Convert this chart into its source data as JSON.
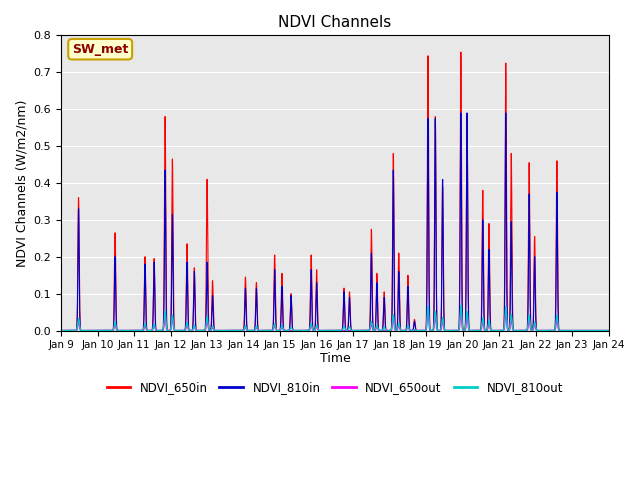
{
  "title": "NDVI Channels",
  "ylabel": "NDVI Channels (W/m2/nm)",
  "xlabel": "Time",
  "ylim": [
    0.0,
    0.8
  ],
  "yticks": [
    0.0,
    0.1,
    0.2,
    0.3,
    0.4,
    0.5,
    0.6,
    0.7,
    0.8
  ],
  "annotation_text": "SW_met",
  "annotation_bg": "#ffffcc",
  "annotation_border": "#c8a000",
  "annotation_fg": "#8b0000",
  "line_colors": {
    "NDVI_650in": "#ff0000",
    "NDVI_810in": "#0000cc",
    "NDVI_650out": "#ff00ff",
    "NDVI_810out": "#00cccc"
  },
  "legend_labels": [
    "NDVI_650in",
    "NDVI_810in",
    "NDVI_650out",
    "NDVI_810out"
  ],
  "background_color": "#e8e8e8",
  "x_tick_labels": [
    "Jan 9",
    "Jan 10",
    "Jan 11",
    "Jan 12",
    "Jan 13",
    "Jan 14",
    "Jan 15",
    "Jan 16",
    "Jan 17",
    "Jan 18",
    "Jan 19",
    "Jan 20",
    "Jan 21",
    "Jan 22",
    "Jan 23",
    "Jan 24"
  ]
}
